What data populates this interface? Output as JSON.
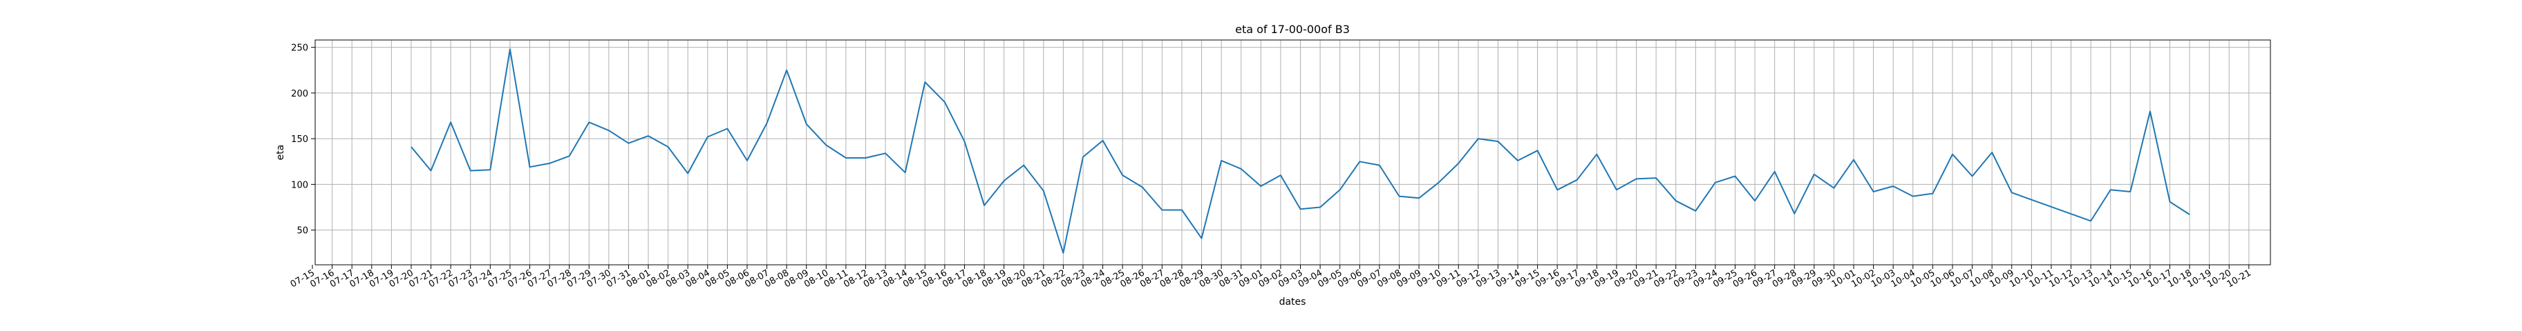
{
  "chart_data": {
    "type": "line",
    "title": "eta of 17-00-00of B3",
    "xlabel": "dates",
    "ylabel": "eta",
    "grid": true,
    "legend": "none",
    "ylim": [
      12,
      258
    ],
    "yticks": [
      50,
      100,
      150,
      200,
      250
    ],
    "x_labels": [
      "07-15",
      "07-16",
      "07-17",
      "07-18",
      "07-19",
      "07-20",
      "07-21",
      "07-22",
      "07-23",
      "07-24",
      "07-25",
      "07-26",
      "07-27",
      "07-28",
      "07-29",
      "07-30",
      "07-31",
      "08-01",
      "08-02",
      "08-03",
      "08-04",
      "08-05",
      "08-06",
      "08-07",
      "08-08",
      "08-09",
      "08-10",
      "08-11",
      "08-12",
      "08-13",
      "08-14",
      "08-15",
      "08-16",
      "08-17",
      "08-18",
      "08-19",
      "08-20",
      "08-21",
      "08-22",
      "08-23",
      "08-24",
      "08-25",
      "08-26",
      "08-27",
      "08-28",
      "08-29",
      "08-30",
      "08-31",
      "09-01",
      "09-02",
      "09-03",
      "09-04",
      "09-05",
      "09-06",
      "09-07",
      "09-08",
      "09-09",
      "09-10",
      "09-11",
      "09-12",
      "09-13",
      "09-14",
      "09-15",
      "09-16",
      "09-17",
      "09-18",
      "09-19",
      "09-20",
      "09-21",
      "09-22",
      "09-23",
      "09-24",
      "09-25",
      "09-26",
      "09-27",
      "09-28",
      "09-29",
      "09-30",
      "10-01",
      "10-02",
      "10-03",
      "10-04",
      "10-05",
      "10-06",
      "10-07",
      "10-08",
      "10-09",
      "10-10",
      "10-11",
      "10-12",
      "10-13",
      "10-14",
      "10-15",
      "10-16",
      "10-17",
      "10-18",
      "10-19",
      "10-20",
      "10-21"
    ],
    "color": "#1f77b4",
    "series": [
      {
        "x": [
          "07-20",
          "07-21",
          "07-22",
          "07-23",
          "07-24",
          "07-25",
          "07-26",
          "07-27",
          "07-28",
          "07-29",
          "07-30",
          "07-31",
          "08-01",
          "08-02",
          "08-03",
          "08-04",
          "08-05",
          "08-06",
          "08-07",
          "08-08",
          "08-09",
          "08-10",
          "08-11",
          "08-12",
          "08-13",
          "08-14",
          "08-15",
          "08-16",
          "08-17",
          "08-18",
          "08-19",
          "08-20",
          "08-21",
          "08-22",
          "08-23",
          "08-24",
          "08-25",
          "08-26",
          "08-27",
          "08-28",
          "08-29",
          "08-30",
          "08-31",
          "09-01",
          "09-02",
          "09-03",
          "09-04",
          "09-05",
          "09-06",
          "09-07",
          "09-08",
          "09-09",
          "09-10",
          "09-11",
          "09-12",
          "09-13",
          "09-14",
          "09-15",
          "09-16",
          "09-17",
          "09-18",
          "09-19",
          "09-20",
          "09-21",
          "09-22",
          "09-23",
          "09-24",
          "09-25",
          "09-26",
          "09-27",
          "09-28",
          "09-29",
          "09-30",
          "10-01",
          "10-02",
          "10-03",
          "10-04",
          "10-05",
          "10-06",
          "10-07",
          "10-08",
          "10-09",
          "10-13",
          "10-14",
          "10-15",
          "10-16",
          "10-17",
          "10-18"
        ],
        "y": [
          141,
          115,
          168,
          115,
          116,
          248,
          119,
          123,
          131,
          168,
          159,
          145,
          153,
          141,
          112,
          152,
          161,
          126,
          167,
          225,
          166,
          143,
          129,
          129,
          134,
          113,
          212,
          190,
          147,
          77,
          104,
          121,
          93,
          25,
          130,
          148,
          110,
          97,
          72,
          72,
          41,
          126,
          117,
          98,
          110,
          73,
          75,
          94,
          125,
          121,
          87,
          85,
          102,
          123,
          150,
          147,
          126,
          137,
          94,
          105,
          133,
          94,
          106,
          107,
          82,
          71,
          102,
          109,
          82,
          114,
          68,
          111,
          96,
          127,
          92,
          98,
          87,
          90,
          133,
          109,
          135,
          91,
          60,
          94,
          92,
          180,
          81,
          67
        ]
      }
    ]
  }
}
